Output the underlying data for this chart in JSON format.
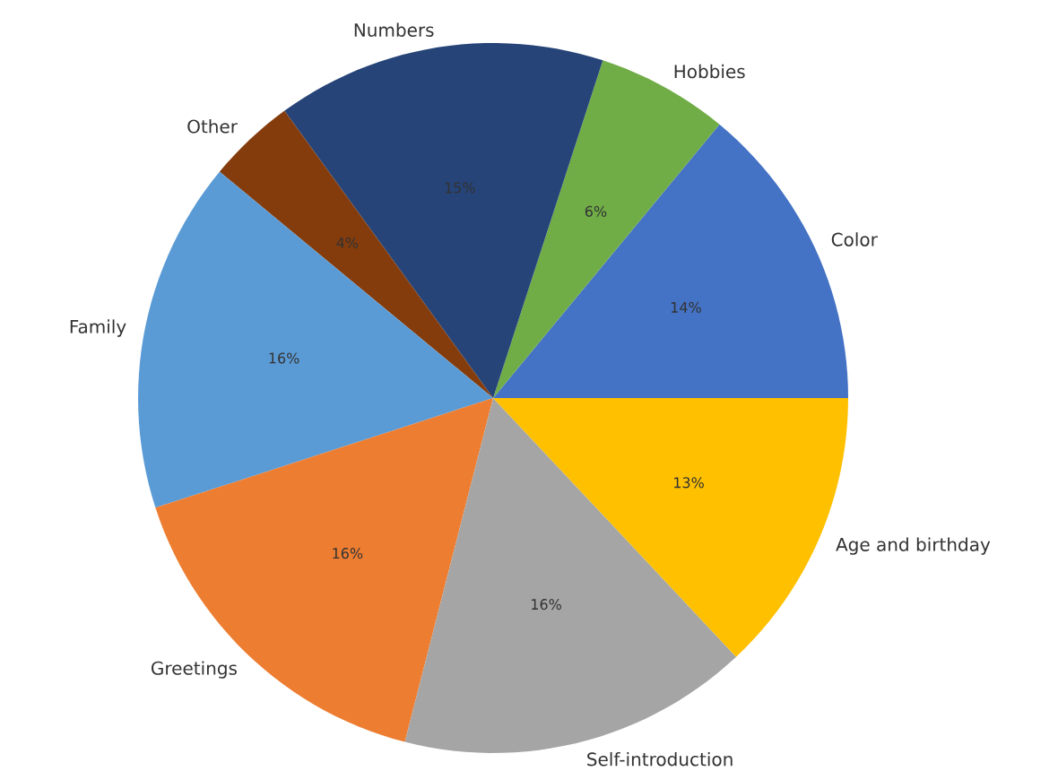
{
  "chart_data": {
    "type": "pie",
    "categories": [
      "Color",
      "Hobbies",
      "Numbers",
      "Other",
      "Family",
      "Greetings",
      "Self-introduction",
      "Age and birthday"
    ],
    "values": [
      14,
      6,
      15,
      4,
      16,
      16,
      16,
      13
    ],
    "value_labels": [
      "14%",
      "6%",
      "15%",
      "4%",
      "16%",
      "16%",
      "16%",
      "13%"
    ],
    "colors": [
      "#4472c4",
      "#70ad47",
      "#264478",
      "#843c0c",
      "#5b9bd5",
      "#ed7d31",
      "#a5a5a5",
      "#ffc000"
    ]
  }
}
